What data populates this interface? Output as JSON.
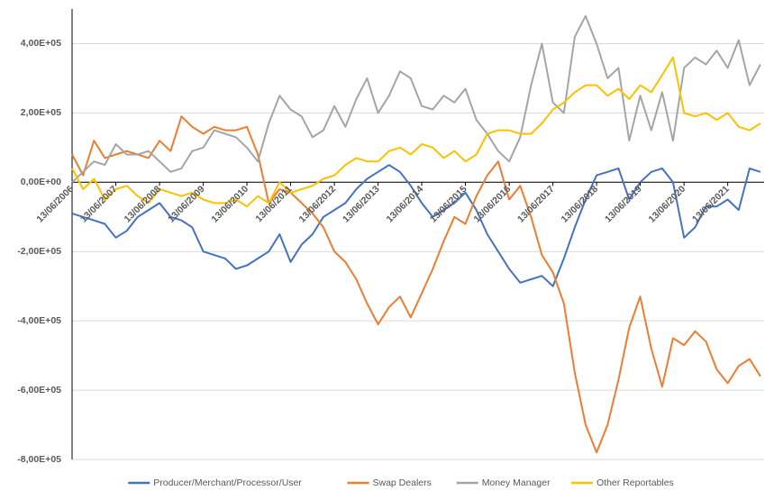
{
  "chart_data": {
    "type": "line",
    "x": [
      "2006-06-13",
      "2006-09-13",
      "2006-12-13",
      "2007-03-13",
      "2007-06-13",
      "2007-09-13",
      "2007-12-13",
      "2008-03-13",
      "2008-06-13",
      "2008-09-13",
      "2008-12-13",
      "2009-03-13",
      "2009-06-13",
      "2009-09-13",
      "2009-12-13",
      "2010-03-13",
      "2010-06-13",
      "2010-09-13",
      "2010-12-13",
      "2011-03-13",
      "2011-06-13",
      "2011-09-13",
      "2011-12-13",
      "2012-03-13",
      "2012-06-13",
      "2012-09-13",
      "2012-12-13",
      "2013-03-13",
      "2013-06-13",
      "2013-09-13",
      "2013-12-13",
      "2014-03-13",
      "2014-06-13",
      "2014-09-13",
      "2014-12-13",
      "2015-03-13",
      "2015-06-13",
      "2015-09-13",
      "2015-12-13",
      "2016-03-13",
      "2016-06-13",
      "2016-09-13",
      "2016-12-13",
      "2017-03-13",
      "2017-06-13",
      "2017-09-13",
      "2017-12-13",
      "2018-03-13",
      "2018-06-13",
      "2018-09-13",
      "2018-12-13",
      "2019-03-13",
      "2019-06-13",
      "2019-09-13",
      "2019-12-13",
      "2020-03-13",
      "2020-06-13",
      "2020-09-13",
      "2020-12-13",
      "2021-03-13",
      "2021-06-13",
      "2021-09-13",
      "2021-12-13",
      "2022-03-13"
    ],
    "series": [
      {
        "name": "Producer/Merchant/Processor/User",
        "color": "#4472c4",
        "values": [
          -90000,
          -100000,
          -110000,
          -120000,
          -160000,
          -140000,
          -100000,
          -80000,
          -60000,
          -100000,
          -110000,
          -130000,
          -200000,
          -210000,
          -220000,
          -250000,
          -240000,
          -220000,
          -200000,
          -150000,
          -230000,
          -180000,
          -150000,
          -100000,
          -80000,
          -60000,
          -20000,
          10000,
          30000,
          50000,
          30000,
          -10000,
          -60000,
          -100000,
          -80000,
          -60000,
          -30000,
          -80000,
          -150000,
          -200000,
          -250000,
          -290000,
          -280000,
          -270000,
          -300000,
          -220000,
          -130000,
          -50000,
          20000,
          30000,
          40000,
          -50000,
          0,
          30000,
          40000,
          0,
          -160000,
          -130000,
          -70000,
          -70000,
          -50000,
          -80000,
          40000,
          30000
        ]
      },
      {
        "name": "Swap Dealers",
        "color": "#ed7d31",
        "values": [
          80000,
          20000,
          120000,
          70000,
          80000,
          90000,
          80000,
          70000,
          120000,
          90000,
          190000,
          160000,
          140000,
          160000,
          150000,
          150000,
          160000,
          80000,
          -60000,
          -20000,
          -30000,
          -60000,
          -90000,
          -130000,
          -200000,
          -230000,
          -280000,
          -350000,
          -410000,
          -360000,
          -330000,
          -390000,
          -320000,
          -250000,
          -170000,
          -100000,
          -120000,
          -40000,
          20000,
          60000,
          -50000,
          -10000,
          -100000,
          -210000,
          -260000,
          -350000,
          -550000,
          -700000,
          -780000,
          -700000,
          -570000,
          -420000,
          -330000,
          -480000,
          -590000,
          -450000,
          -470000,
          -430000,
          -460000,
          -540000,
          -580000,
          -530000,
          -510000,
          -560000
        ]
      },
      {
        "name": "Money Manager",
        "color": "#a5a5a5",
        "values": [
          0,
          30000,
          60000,
          50000,
          110000,
          80000,
          80000,
          90000,
          60000,
          30000,
          40000,
          90000,
          100000,
          150000,
          140000,
          130000,
          100000,
          60000,
          170000,
          250000,
          210000,
          190000,
          130000,
          150000,
          220000,
          160000,
          240000,
          300000,
          200000,
          250000,
          320000,
          300000,
          220000,
          210000,
          250000,
          230000,
          270000,
          180000,
          140000,
          90000,
          60000,
          130000,
          280000,
          400000,
          230000,
          200000,
          420000,
          480000,
          400000,
          300000,
          330000,
          120000,
          250000,
          150000,
          260000,
          120000,
          330000,
          360000,
          340000,
          380000,
          330000,
          410000,
          280000,
          340000
        ]
      },
      {
        "name": "Other Reportables",
        "color": "#ffc000",
        "values": [
          40000,
          -20000,
          10000,
          -50000,
          -20000,
          -10000,
          -40000,
          -60000,
          -20000,
          -30000,
          -40000,
          -30000,
          -50000,
          -60000,
          -60000,
          -50000,
          -70000,
          -40000,
          -60000,
          0,
          -30000,
          -20000,
          -10000,
          10000,
          20000,
          50000,
          70000,
          60000,
          60000,
          90000,
          100000,
          80000,
          110000,
          100000,
          70000,
          90000,
          60000,
          80000,
          140000,
          150000,
          150000,
          140000,
          140000,
          170000,
          210000,
          230000,
          260000,
          280000,
          280000,
          250000,
          270000,
          240000,
          280000,
          260000,
          310000,
          360000,
          200000,
          190000,
          200000,
          180000,
          200000,
          160000,
          150000,
          170000
        ]
      }
    ],
    "xlim": [
      "2006-06-13",
      "2022-04-13"
    ],
    "xticks": [
      {
        "value": "2006-06-13",
        "label": "13/06/2006"
      },
      {
        "value": "2007-06-13",
        "label": "13/06/2007"
      },
      {
        "value": "2008-06-13",
        "label": "13/06/2008"
      },
      {
        "value": "2009-06-13",
        "label": "13/06/2009"
      },
      {
        "value": "2010-06-13",
        "label": "13/06/2010"
      },
      {
        "value": "2011-06-13",
        "label": "13/06/2011"
      },
      {
        "value": "2012-06-13",
        "label": "13/06/2012"
      },
      {
        "value": "2013-06-13",
        "label": "13/06/2013"
      },
      {
        "value": "2014-06-13",
        "label": "13/06/2014"
      },
      {
        "value": "2015-06-13",
        "label": "13/06/2015"
      },
      {
        "value": "2016-06-13",
        "label": "13/06/2016"
      },
      {
        "value": "2017-06-13",
        "label": "13/06/2017"
      },
      {
        "value": "2018-06-13",
        "label": "13/06/2018"
      },
      {
        "value": "2019-06-13",
        "label": "13/06/2019"
      },
      {
        "value": "2020-06-13",
        "label": "13/06/2020"
      },
      {
        "value": "2021-06-13",
        "label": "13/06/2021"
      }
    ],
    "ylim": [
      -800000,
      500000
    ],
    "yticks": [
      {
        "value": -800000,
        "label": "-8,00E+05"
      },
      {
        "value": -600000,
        "label": "-6,00E+05"
      },
      {
        "value": -400000,
        "label": "-4,00E+05"
      },
      {
        "value": -200000,
        "label": "-2,00E+05"
      },
      {
        "value": 0,
        "label": "0,00E+00"
      },
      {
        "value": 200000,
        "label": "2,00E+05"
      },
      {
        "value": 400000,
        "label": "4,00E+05"
      }
    ],
    "grid": true,
    "legend": "bottom"
  }
}
